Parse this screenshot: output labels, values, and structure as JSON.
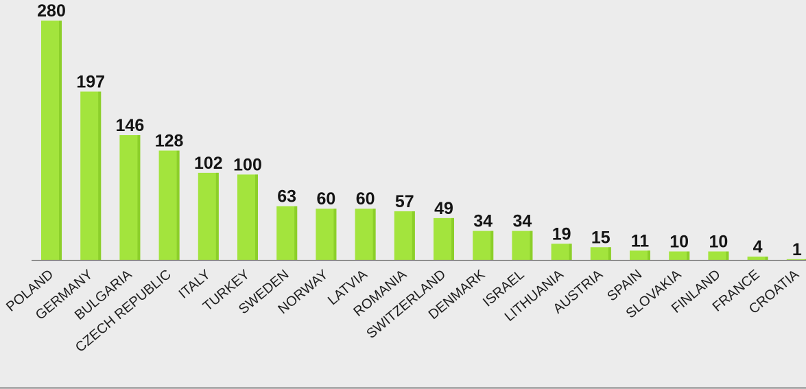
{
  "chart_data": {
    "type": "bar",
    "title": "",
    "xlabel": "",
    "ylabel": "",
    "categories": [
      "POLAND",
      "GERMANY",
      "BULGARIA",
      "CZECH REPUBLIC",
      "ITALY",
      "TURKEY",
      "SWEDEN",
      "NORWAY",
      "LATVIA",
      "ROMANIA",
      "SWITZERLAND",
      "DENMARK",
      "ISRAEL",
      "LITHUANIA",
      "AUSTRIA",
      "SPAIN",
      "SLOVAKIA",
      "FINLAND",
      "FRANCE",
      "CROATIA"
    ],
    "values": [
      280,
      197,
      146,
      128,
      102,
      100,
      63,
      60,
      60,
      57,
      49,
      34,
      34,
      19,
      15,
      11,
      10,
      10,
      4,
      1
    ],
    "ylim": [
      0,
      280
    ],
    "grid": false,
    "legend": "none",
    "colors": {
      "bar": "#a3e43d",
      "bar_shade": "#8ccf2a",
      "background": "#ececec",
      "axis": "#7a7a7a",
      "text": "#141414"
    }
  }
}
